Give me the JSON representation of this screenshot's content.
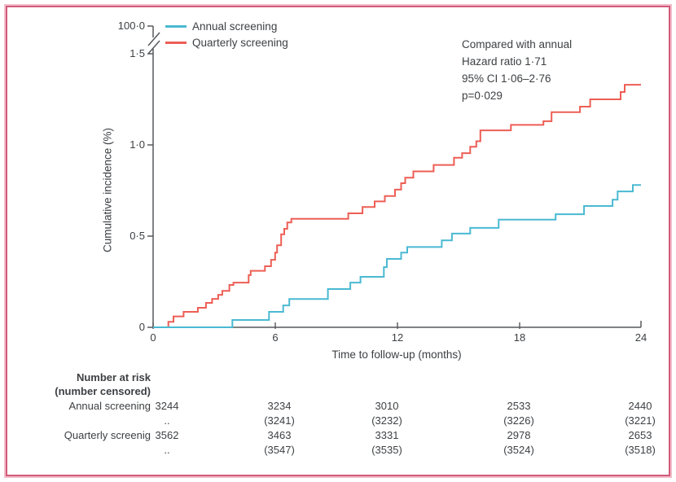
{
  "figure": {
    "border_inner_color": "#d15a79",
    "border_outer_color": "#f3bdca",
    "axis_color": "#57585b",
    "text_color": "#3d4043"
  },
  "chart_data": {
    "type": "line",
    "subtype": "cumulative-incidence-step",
    "title": "",
    "xlabel": "Time to follow-up (months)",
    "ylabel": "Cumulative incidence (%)",
    "xlim": [
      0,
      24
    ],
    "ylim_display": [
      0,
      1.5
    ],
    "axis_break": {
      "present": true,
      "upper_tick_label": "100·0"
    },
    "x_ticks": [
      "0",
      "6",
      "12",
      "18",
      "24"
    ],
    "y_ticks": [
      "0",
      "0·5",
      "1·0",
      "1·5",
      "100·0"
    ],
    "grid": false,
    "legend_position": "top-left",
    "series": [
      {
        "name": "Annual screening",
        "color": "#4ab9d2",
        "points": [
          [
            0,
            0
          ],
          [
            3.9,
            0.04
          ],
          [
            5.7,
            0.085
          ],
          [
            6.4,
            0.12
          ],
          [
            6.7,
            0.155
          ],
          [
            8.6,
            0.21
          ],
          [
            9.7,
            0.245
          ],
          [
            10.2,
            0.277
          ],
          [
            11.35,
            0.33
          ],
          [
            11.5,
            0.375
          ],
          [
            12.2,
            0.41
          ],
          [
            12.5,
            0.44
          ],
          [
            14.2,
            0.477
          ],
          [
            14.7,
            0.514
          ],
          [
            15.6,
            0.545
          ],
          [
            17.0,
            0.59
          ],
          [
            19.8,
            0.62
          ],
          [
            21.2,
            0.665
          ],
          [
            22.6,
            0.7
          ],
          [
            22.85,
            0.745
          ],
          [
            23.6,
            0.78
          ],
          [
            24,
            0.78
          ]
        ]
      },
      {
        "name": "Quarterly screening",
        "color": "#ed5e55",
        "points": [
          [
            0,
            0
          ],
          [
            0.75,
            0.03
          ],
          [
            1.0,
            0.06
          ],
          [
            1.5,
            0.085
          ],
          [
            2.2,
            0.107
          ],
          [
            2.6,
            0.134
          ],
          [
            2.9,
            0.156
          ],
          [
            3.2,
            0.178
          ],
          [
            3.4,
            0.2
          ],
          [
            3.75,
            0.232
          ],
          [
            3.95,
            0.245
          ],
          [
            4.7,
            0.286
          ],
          [
            4.8,
            0.31
          ],
          [
            5.5,
            0.335
          ],
          [
            5.8,
            0.37
          ],
          [
            6.0,
            0.41
          ],
          [
            6.1,
            0.45
          ],
          [
            6.3,
            0.51
          ],
          [
            6.45,
            0.54
          ],
          [
            6.6,
            0.575
          ],
          [
            6.8,
            0.595
          ],
          [
            9.6,
            0.625
          ],
          [
            10.3,
            0.66
          ],
          [
            10.9,
            0.69
          ],
          [
            11.4,
            0.72
          ],
          [
            11.9,
            0.755
          ],
          [
            12.2,
            0.79
          ],
          [
            12.4,
            0.82
          ],
          [
            12.8,
            0.855
          ],
          [
            13.8,
            0.89
          ],
          [
            14.8,
            0.93
          ],
          [
            15.2,
            0.955
          ],
          [
            15.6,
            0.99
          ],
          [
            15.9,
            1.02
          ],
          [
            16.1,
            1.08
          ],
          [
            17.6,
            1.11
          ],
          [
            19.2,
            1.13
          ],
          [
            19.6,
            1.18
          ],
          [
            21.0,
            1.21
          ],
          [
            21.5,
            1.25
          ],
          [
            23.0,
            1.29
          ],
          [
            23.2,
            1.33
          ],
          [
            24,
            1.33
          ]
        ]
      }
    ],
    "annotation": {
      "lines": [
        "Compared with annual",
        "Hazard ratio 1·71",
        "95% CI 1·06–2·76",
        "p=0·029"
      ]
    }
  },
  "risk_table": {
    "header_line1": "Number at risk",
    "header_line2": "(number censored)",
    "rows": [
      {
        "label": "Annual screening",
        "at_risk": [
          "3244",
          "3234",
          "3010",
          "2533",
          "2440"
        ],
        "censored": [
          "..",
          "(3241)",
          "(3232)",
          "(3226)",
          "(3221)"
        ]
      },
      {
        "label": "Quarterly screenig",
        "at_risk": [
          "3562",
          "3463",
          "3331",
          "2978",
          "2653"
        ],
        "censored": [
          "..",
          "(3547)",
          "(3535)",
          "(3524)",
          "(3518)"
        ]
      }
    ]
  }
}
